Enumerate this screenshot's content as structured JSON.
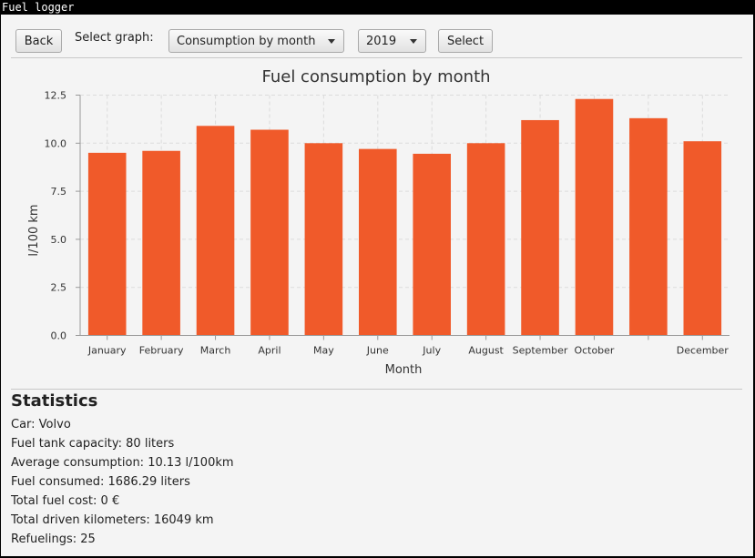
{
  "window": {
    "title": "Fuel logger"
  },
  "toolbar": {
    "back_label": "Back",
    "select_graph_label": "Select graph:",
    "graph_type_value": "Consumption by month",
    "year_value": "2019",
    "select_label": "Select"
  },
  "chart_data": {
    "type": "bar",
    "title": "Fuel consumption by month",
    "xlabel": "Month",
    "ylabel": "l/100 km",
    "ylim": [
      0,
      12.5
    ],
    "yticks": [
      "0.0",
      "2.5",
      "5.0",
      "7.5",
      "10.0",
      "12.5"
    ],
    "categories": [
      "January",
      "February",
      "March",
      "April",
      "May",
      "June",
      "July",
      "August",
      "September",
      "October",
      "",
      "December"
    ],
    "values": [
      9.5,
      9.6,
      10.9,
      10.7,
      10.0,
      9.7,
      9.45,
      10.0,
      11.2,
      12.3,
      11.3,
      10.1
    ],
    "bar_color": "#f05a2a",
    "grid": true
  },
  "statistics": {
    "title": "Statistics",
    "car": "Car: Volvo",
    "tank": "Fuel tank capacity: 80 liters",
    "avg": "Average consumption: 10.13 l/100km",
    "consumed": "Fuel consumed: 1686.29 liters",
    "cost": "Total fuel cost: 0 €",
    "km": "Total driven kilometers: 16049 km",
    "refuelings": "Refuelings: 25"
  }
}
